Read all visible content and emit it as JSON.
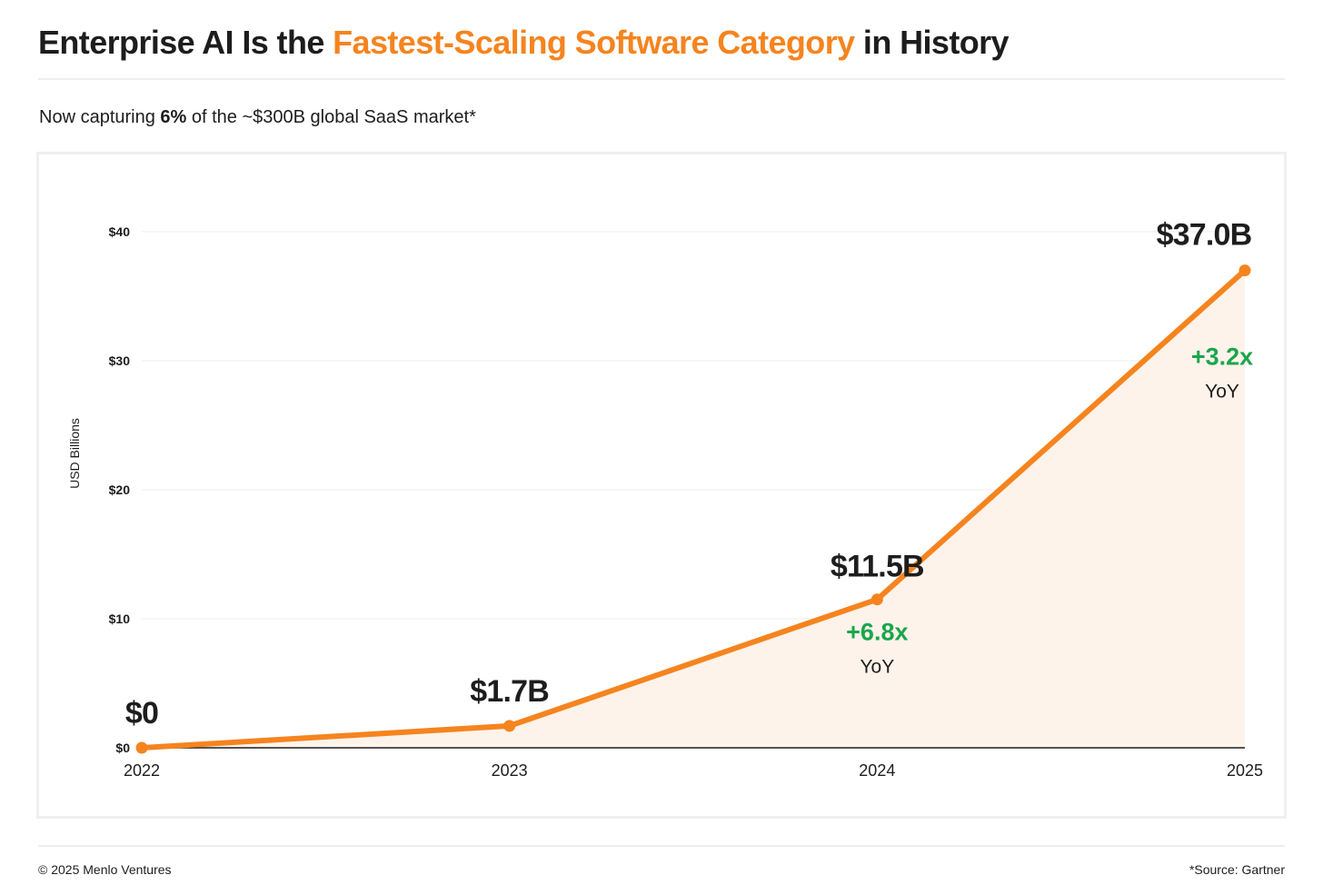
{
  "header": {
    "title_part1": "Enterprise AI Is the ",
    "title_accent": "Fastest-Scaling Software Category",
    "title_part2": " in History",
    "subtitle_prefix": "Now capturing ",
    "subtitle_bold": "6%",
    "subtitle_suffix": " of the ~$300B global SaaS market*"
  },
  "footer": {
    "copyright": "© 2025 Menlo Ventures",
    "source": "*Source: Gartner"
  },
  "colors": {
    "accent": "#f5841f",
    "area_fill": "#fdf3ea",
    "growth_green": "#1aa64b",
    "text_dark": "#1d1d1d",
    "gridline": "#ececec"
  },
  "chart_data": {
    "type": "area",
    "title": "",
    "xlabel": "",
    "ylabel": "USD Billions",
    "categories": [
      "2022",
      "2023",
      "2024",
      "2025"
    ],
    "values": [
      0,
      1.7,
      11.5,
      37.0
    ],
    "ylim": [
      0,
      40
    ],
    "yticks": [
      0,
      10,
      20,
      30,
      40
    ],
    "ytick_labels": [
      "$0",
      "$10",
      "$20",
      "$30",
      "$40"
    ],
    "grid": true,
    "legend": "none",
    "data_labels": [
      "$0",
      "$1.7B",
      "$11.5B",
      "$37.0B"
    ],
    "annotations": [
      {
        "x": "2024",
        "growth": "+6.8x",
        "period": "YoY"
      },
      {
        "x": "2025",
        "growth": "+3.2x",
        "period": "YoY"
      }
    ]
  }
}
